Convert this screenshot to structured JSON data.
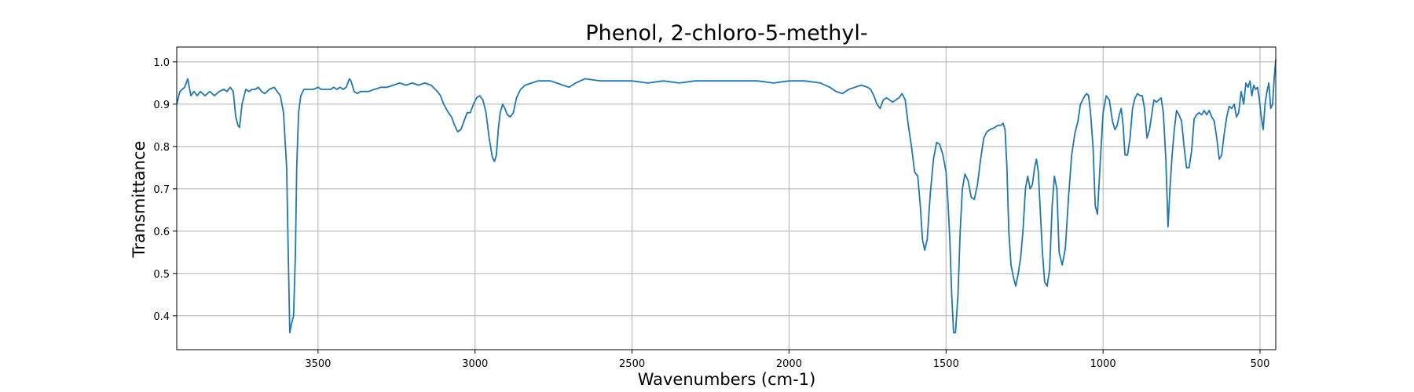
{
  "chart_data": {
    "type": "line",
    "title": "Phenol, 2-chloro-5-methyl-",
    "xlabel": "Wavenumbers (cm-1)",
    "ylabel": "Transmittance",
    "xlim": [
      3950,
      450
    ],
    "ylim": [
      0.32,
      1.035
    ],
    "x_reversed": true,
    "grid": true,
    "legend": "none",
    "x_ticks": [
      3500,
      3000,
      2500,
      2000,
      1500,
      1000,
      500
    ],
    "y_ticks": [
      0.4,
      0.5,
      0.6,
      0.7,
      0.8,
      0.9,
      1.0
    ],
    "x_tick_labels": [
      "3500",
      "3000",
      "2500",
      "2000",
      "1500",
      "1000",
      "500"
    ],
    "y_tick_labels": [
      "0.4",
      "0.5",
      "0.6",
      "0.7",
      "0.8",
      "0.9",
      "1.0"
    ],
    "colors": {
      "line": "#1f77b4",
      "grid": "#b0b0b0",
      "axes": "#000000"
    },
    "series": [
      {
        "x": [
          3950,
          3940,
          3925,
          3915,
          3905,
          3895,
          3885,
          3875,
          3860,
          3845,
          3830,
          3815,
          3800,
          3790,
          3780,
          3770,
          3762,
          3755,
          3750,
          3742,
          3730,
          3720,
          3710,
          3700,
          3690,
          3680,
          3670,
          3655,
          3640,
          3630,
          3620,
          3610,
          3600,
          3595,
          3590,
          3585,
          3578,
          3572,
          3568,
          3562,
          3555,
          3545,
          3530,
          3515,
          3500,
          3490,
          3480,
          3470,
          3460,
          3450,
          3440,
          3430,
          3420,
          3410,
          3400,
          3395,
          3385,
          3375,
          3365,
          3355,
          3340,
          3320,
          3300,
          3280,
          3260,
          3240,
          3220,
          3200,
          3180,
          3160,
          3140,
          3120,
          3110,
          3100,
          3085,
          3075,
          3065,
          3055,
          3045,
          3035,
          3025,
          3015,
          3005,
          2995,
          2985,
          2975,
          2965,
          2955,
          2945,
          2938,
          2932,
          2926,
          2920,
          2912,
          2905,
          2897,
          2888,
          2878,
          2868,
          2855,
          2840,
          2820,
          2800,
          2780,
          2760,
          2740,
          2720,
          2700,
          2680,
          2650,
          2600,
          2550,
          2500,
          2450,
          2400,
          2350,
          2300,
          2250,
          2200,
          2150,
          2100,
          2050,
          2000,
          1950,
          1900,
          1870,
          1850,
          1830,
          1810,
          1790,
          1770,
          1750,
          1740,
          1730,
          1720,
          1710,
          1700,
          1690,
          1680,
          1670,
          1660,
          1650,
          1640,
          1630,
          1620,
          1610,
          1600,
          1590,
          1582,
          1575,
          1568,
          1560,
          1550,
          1540,
          1530,
          1520,
          1510,
          1500,
          1494,
          1488,
          1482,
          1476,
          1470,
          1462,
          1455,
          1448,
          1440,
          1430,
          1420,
          1410,
          1400,
          1390,
          1380,
          1370,
          1360,
          1345,
          1335,
          1325,
          1318,
          1312,
          1306,
          1300,
          1293,
          1285,
          1278,
          1270,
          1262,
          1255,
          1247,
          1240,
          1232,
          1225,
          1218,
          1212,
          1206,
          1200,
          1193,
          1186,
          1178,
          1170,
          1162,
          1155,
          1147,
          1140,
          1130,
          1120,
          1110,
          1100,
          1090,
          1080,
          1072,
          1065,
          1058,
          1052,
          1046,
          1040,
          1032,
          1025,
          1018,
          1010,
          1000,
          990,
          980,
          970,
          962,
          955,
          948,
          942,
          936,
          930,
          922,
          914,
          906,
          898,
          890,
          882,
          875,
          868,
          860,
          852,
          845,
          838,
          830,
          822,
          815,
          808,
          800,
          793,
          787,
          780,
          773,
          766,
          758,
          750,
          742,
          734,
          726,
          718,
          710,
          702,
          694,
          686,
          678,
          670,
          662,
          654,
          646,
          638,
          630,
          622,
          614,
          606,
          598,
          590,
          582,
          575,
          568,
          560,
          552,
          545,
          538,
          532,
          526,
          520,
          514,
          508,
          502,
          496,
          490,
          484,
          478,
          472,
          466,
          460,
          455,
          450
        ],
        "y": [
          0.9,
          0.93,
          0.94,
          0.96,
          0.92,
          0.93,
          0.92,
          0.93,
          0.92,
          0.93,
          0.92,
          0.93,
          0.935,
          0.93,
          0.94,
          0.93,
          0.87,
          0.85,
          0.845,
          0.9,
          0.935,
          0.93,
          0.935,
          0.935,
          0.94,
          0.93,
          0.925,
          0.935,
          0.94,
          0.93,
          0.92,
          0.88,
          0.75,
          0.55,
          0.36,
          0.38,
          0.4,
          0.55,
          0.75,
          0.88,
          0.92,
          0.935,
          0.935,
          0.935,
          0.94,
          0.935,
          0.935,
          0.935,
          0.935,
          0.94,
          0.935,
          0.94,
          0.935,
          0.94,
          0.96,
          0.955,
          0.93,
          0.925,
          0.93,
          0.93,
          0.93,
          0.935,
          0.94,
          0.94,
          0.945,
          0.95,
          0.945,
          0.95,
          0.945,
          0.95,
          0.945,
          0.93,
          0.92,
          0.9,
          0.88,
          0.87,
          0.85,
          0.835,
          0.84,
          0.86,
          0.88,
          0.88,
          0.9,
          0.915,
          0.92,
          0.91,
          0.88,
          0.82,
          0.775,
          0.765,
          0.78,
          0.84,
          0.88,
          0.9,
          0.89,
          0.875,
          0.87,
          0.88,
          0.915,
          0.935,
          0.945,
          0.95,
          0.955,
          0.955,
          0.955,
          0.95,
          0.945,
          0.94,
          0.95,
          0.96,
          0.955,
          0.955,
          0.955,
          0.95,
          0.955,
          0.95,
          0.955,
          0.955,
          0.955,
          0.955,
          0.955,
          0.95,
          0.955,
          0.955,
          0.95,
          0.94,
          0.93,
          0.925,
          0.935,
          0.94,
          0.945,
          0.94,
          0.935,
          0.92,
          0.9,
          0.89,
          0.91,
          0.915,
          0.91,
          0.905,
          0.91,
          0.915,
          0.925,
          0.91,
          0.85,
          0.8,
          0.74,
          0.73,
          0.66,
          0.58,
          0.555,
          0.58,
          0.69,
          0.77,
          0.81,
          0.805,
          0.78,
          0.74,
          0.67,
          0.58,
          0.45,
          0.36,
          0.36,
          0.45,
          0.6,
          0.7,
          0.735,
          0.72,
          0.68,
          0.675,
          0.71,
          0.77,
          0.82,
          0.835,
          0.84,
          0.845,
          0.85,
          0.85,
          0.855,
          0.84,
          0.75,
          0.6,
          0.52,
          0.49,
          0.47,
          0.5,
          0.54,
          0.6,
          0.7,
          0.73,
          0.7,
          0.71,
          0.75,
          0.77,
          0.74,
          0.65,
          0.55,
          0.48,
          0.47,
          0.51,
          0.66,
          0.73,
          0.7,
          0.55,
          0.52,
          0.56,
          0.68,
          0.78,
          0.83,
          0.86,
          0.9,
          0.91,
          0.92,
          0.925,
          0.92,
          0.88,
          0.8,
          0.66,
          0.64,
          0.75,
          0.88,
          0.92,
          0.91,
          0.86,
          0.84,
          0.85,
          0.875,
          0.89,
          0.85,
          0.78,
          0.78,
          0.82,
          0.89,
          0.915,
          0.925,
          0.92,
          0.92,
          0.89,
          0.82,
          0.84,
          0.875,
          0.91,
          0.905,
          0.91,
          0.915,
          0.88,
          0.77,
          0.61,
          0.7,
          0.78,
          0.84,
          0.885,
          0.875,
          0.86,
          0.8,
          0.75,
          0.75,
          0.79,
          0.865,
          0.875,
          0.88,
          0.875,
          0.885,
          0.875,
          0.885,
          0.87,
          0.86,
          0.82,
          0.77,
          0.78,
          0.83,
          0.87,
          0.895,
          0.89,
          0.9,
          0.87,
          0.88,
          0.93,
          0.9,
          0.95,
          0.94,
          0.955,
          0.92,
          0.945,
          0.935,
          0.94,
          0.91,
          0.87,
          0.84,
          0.9,
          0.93,
          0.95,
          0.89,
          0.9,
          0.96,
          1.005
        ]
      }
    ]
  }
}
